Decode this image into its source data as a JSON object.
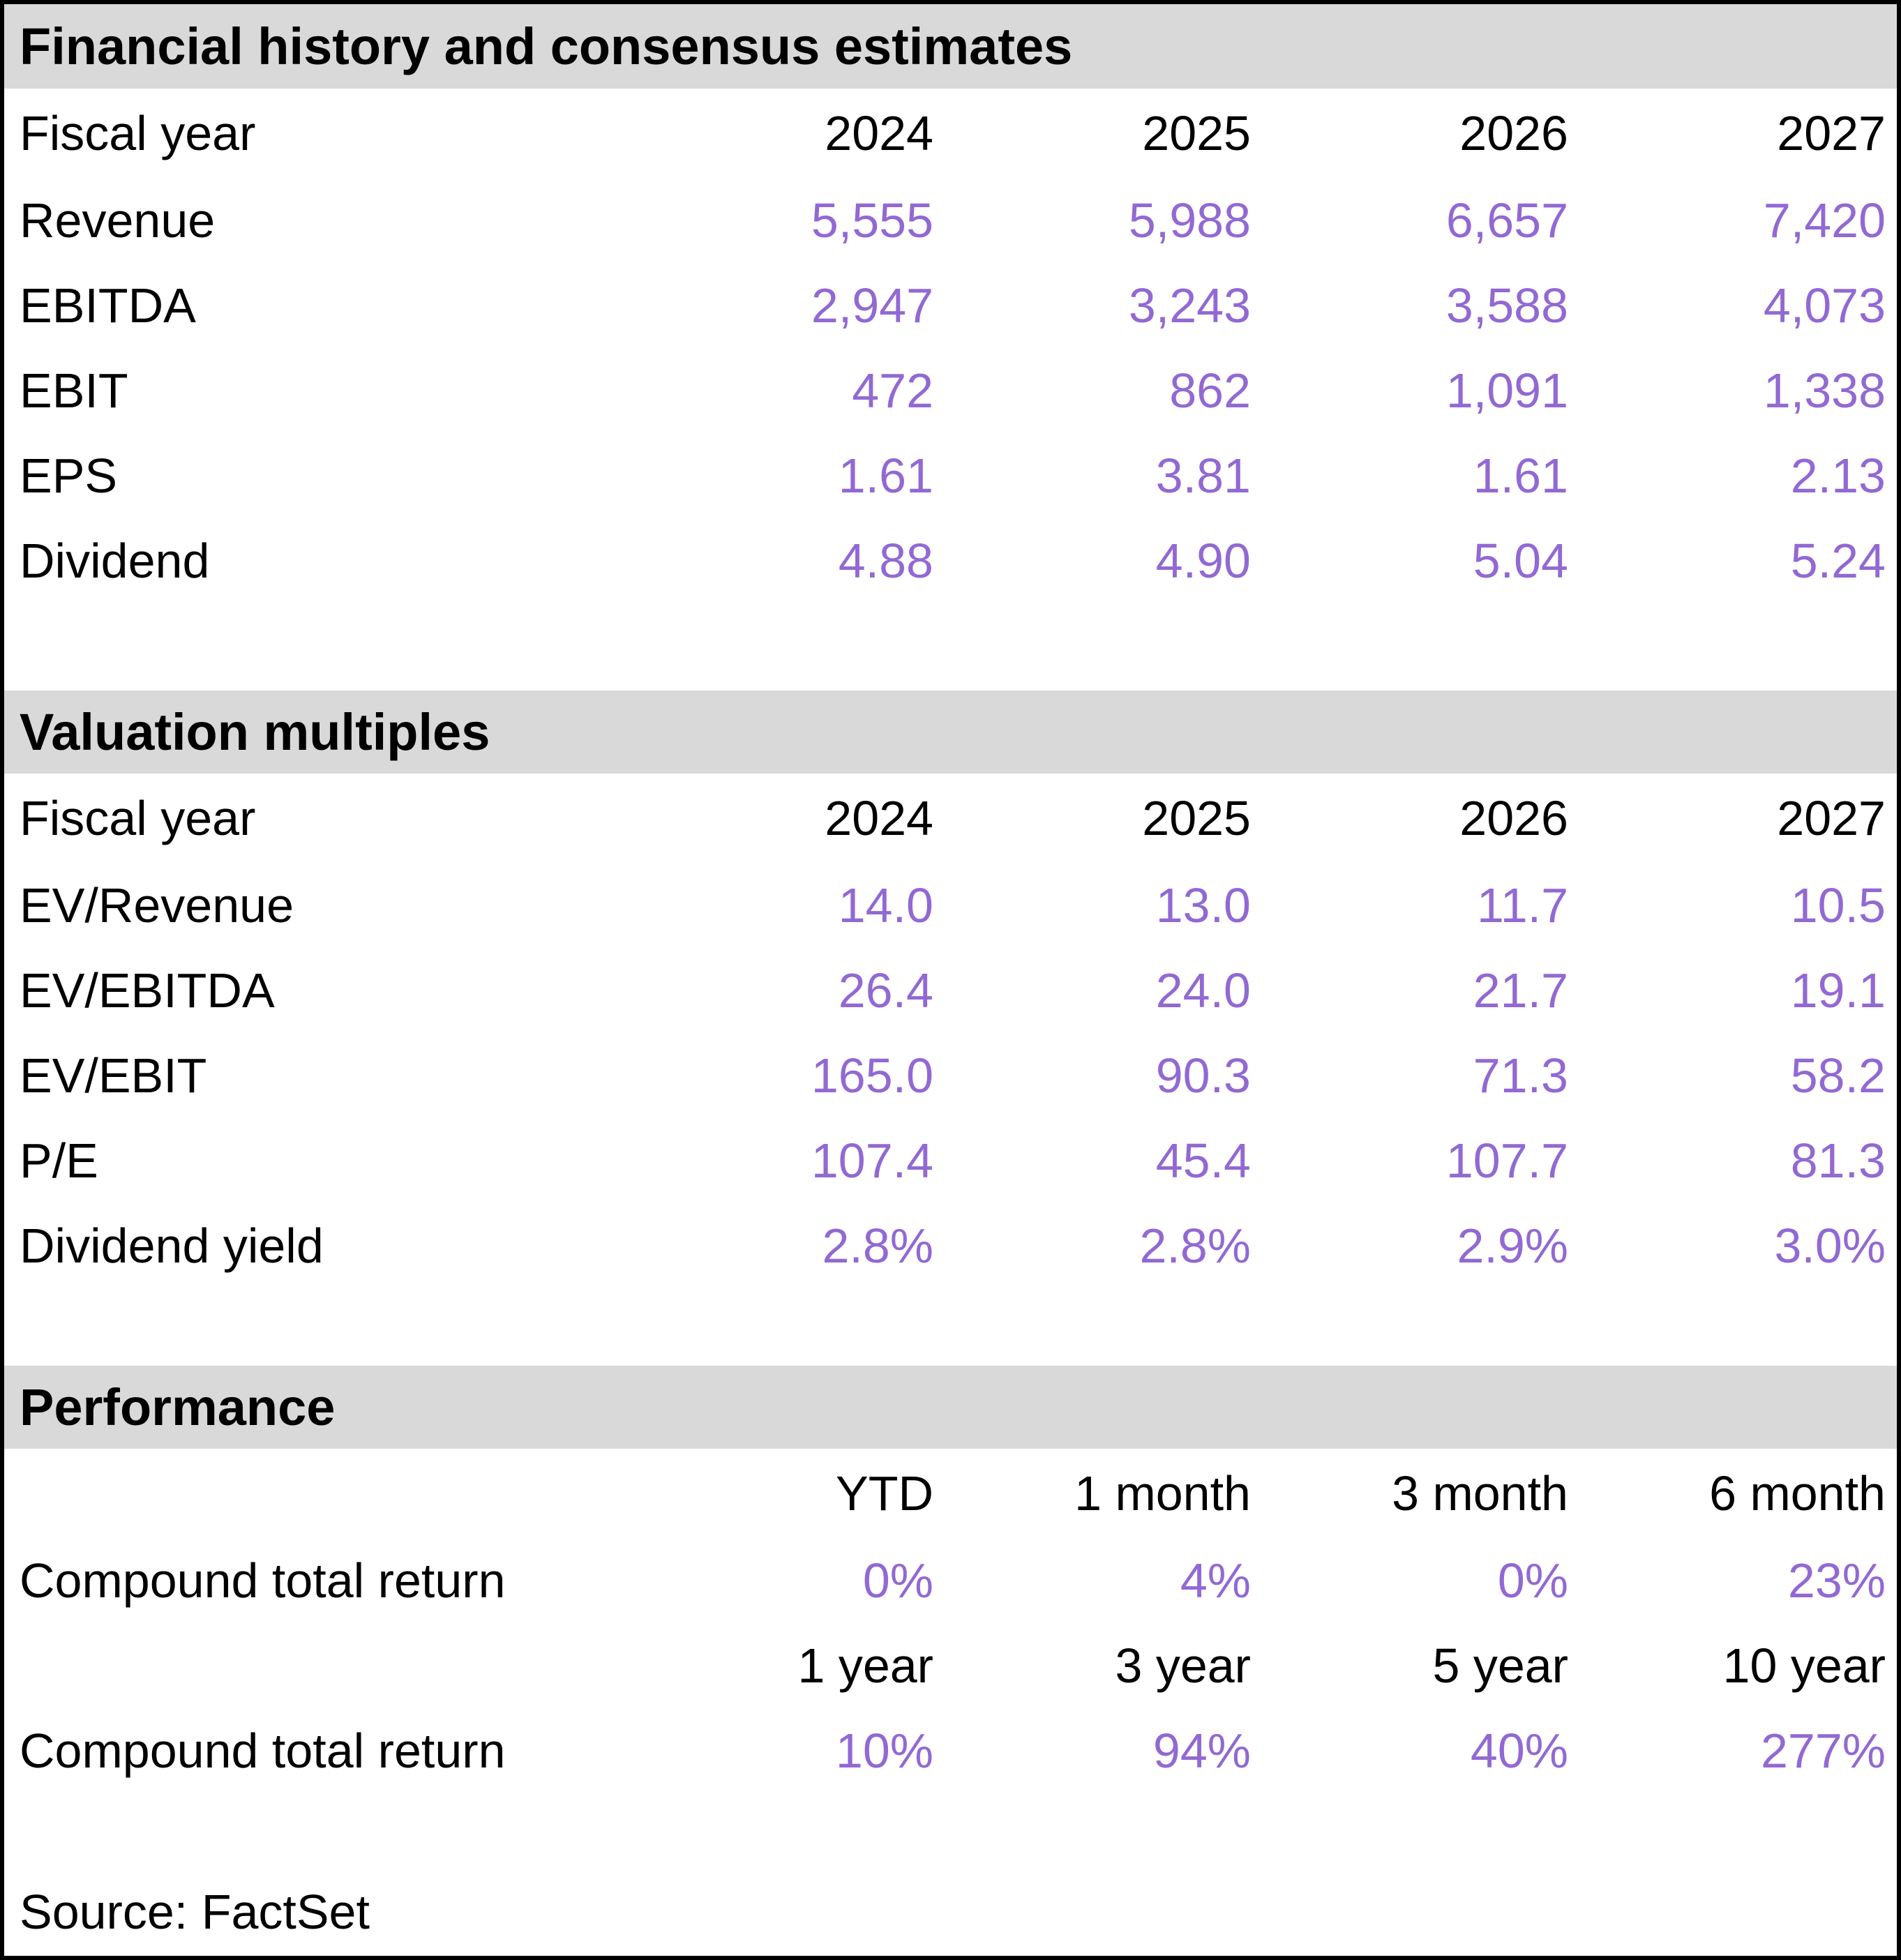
{
  "colors": {
    "accent_purple": "#9269d3",
    "section_header_bg": "#d9d9d9",
    "text": "#000000",
    "border": "#000000"
  },
  "sections": [
    {
      "title": "Financial history and consensus estimates",
      "header_row": {
        "label": "Fiscal year",
        "cols": [
          "2024",
          "2025",
          "2026",
          "2027"
        ]
      },
      "rows": [
        {
          "label": "Revenue",
          "values": [
            "5,555",
            "5,988",
            "6,657",
            "7,420"
          ]
        },
        {
          "label": "EBITDA",
          "values": [
            "2,947",
            "3,243",
            "3,588",
            "4,073"
          ]
        },
        {
          "label": "EBIT",
          "values": [
            "472",
            "862",
            "1,091",
            "1,338"
          ]
        },
        {
          "label": "EPS",
          "values": [
            "1.61",
            "3.81",
            "1.61",
            "2.13"
          ]
        },
        {
          "label": "Dividend",
          "values": [
            "4.88",
            "4.90",
            "5.04",
            "5.24"
          ]
        }
      ]
    },
    {
      "title": "Valuation multiples",
      "header_row": {
        "label": "Fiscal year",
        "cols": [
          "2024",
          "2025",
          "2026",
          "2027"
        ]
      },
      "rows": [
        {
          "label": "EV/Revenue",
          "values": [
            "14.0",
            "13.0",
            "11.7",
            "10.5"
          ]
        },
        {
          "label": "EV/EBITDA",
          "values": [
            "26.4",
            "24.0",
            "21.7",
            "19.1"
          ]
        },
        {
          "label": "EV/EBIT",
          "values": [
            "165.0",
            "90.3",
            "71.3",
            "58.2"
          ]
        },
        {
          "label": "P/E",
          "values": [
            "107.4",
            "45.4",
            "107.7",
            "81.3"
          ]
        },
        {
          "label": "Dividend yield",
          "values": [
            "2.8%",
            "2.8%",
            "2.9%",
            "3.0%"
          ]
        }
      ]
    },
    {
      "title": "Performance",
      "groups": [
        {
          "header": {
            "label": "",
            "cols": [
              "YTD",
              "1 month",
              "3 month",
              "6 month"
            ]
          },
          "row": {
            "label": "Compound total return",
            "values": [
              "0%",
              "4%",
              "0%",
              "23%"
            ]
          }
        },
        {
          "header": {
            "label": "",
            "cols": [
              "1 year",
              "3 year",
              "5 year",
              "10 year"
            ]
          },
          "row": {
            "label": "Compound total return",
            "values": [
              "10%",
              "94%",
              "40%",
              "277%"
            ]
          }
        }
      ]
    }
  ],
  "source": "Source: FactSet"
}
